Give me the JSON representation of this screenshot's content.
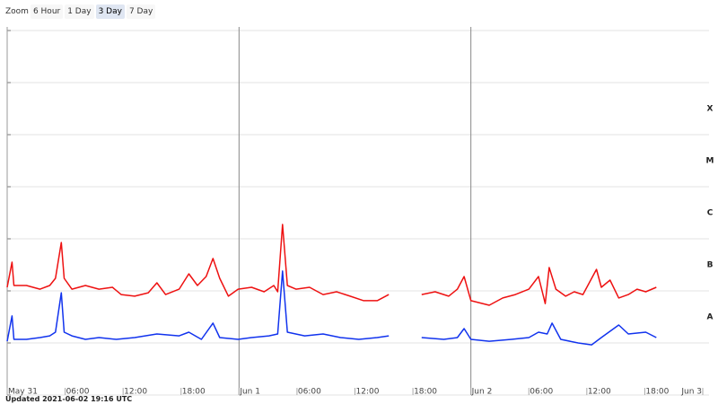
{
  "zoom": {
    "label": "Zoom",
    "options": [
      "6 Hour",
      "1 Day",
      "3 Day",
      "7 Day"
    ],
    "selected": 2
  },
  "chart_data": {
    "type": "line",
    "log_scale": true,
    "grid": true,
    "xlim": [
      0,
      72
    ],
    "xticks": [
      {
        "value": 0,
        "label": "May 31"
      },
      {
        "value": 6,
        "label": "06:00"
      },
      {
        "value": 12,
        "label": "12:00"
      },
      {
        "value": 18,
        "label": "18:00"
      },
      {
        "value": 24,
        "label": "Jun 1"
      },
      {
        "value": 30,
        "label": "06:00"
      },
      {
        "value": 36,
        "label": "12:00"
      },
      {
        "value": 42,
        "label": "18:00"
      },
      {
        "value": 48,
        "label": "Jun 2"
      },
      {
        "value": 54,
        "label": "06:00"
      },
      {
        "value": 60,
        "label": "12:00"
      },
      {
        "value": 66,
        "label": "18:00"
      },
      {
        "value": 72,
        "label": "Jun 3"
      }
    ],
    "ylim": [
      1e-09,
      0.01
    ],
    "yticks": [
      1e-09,
      1e-08,
      1e-07,
      1e-06,
      1e-05,
      0.0001,
      0.001,
      0.01
    ],
    "flare_classes": [
      "A",
      "B",
      "C",
      "M",
      "X"
    ],
    "series": [
      {
        "color": "#ee1111",
        "x": [
          0,
          0.5,
          0.7,
          2.0,
          3.4,
          4.4,
          5.0,
          5.6,
          5.9,
          6.7,
          8.1,
          9.5,
          10.9,
          11.8,
          13.2,
          14.6,
          15.5,
          16.4,
          17.8,
          18.8,
          19.7,
          20.6,
          21.3,
          22.0,
          22.9,
          23.9,
          25.3,
          26.6,
          27.6,
          28.0,
          28.5,
          29.0,
          29.9,
          31.3,
          32.7,
          34.1,
          35.5,
          36.9,
          38.3,
          39.5,
          41.0,
          42.9,
          44.3,
          45.7,
          46.6,
          47.3,
          48.0,
          49.9,
          51.3,
          52.6,
          54.0,
          55.0,
          55.7,
          56.1,
          56.8,
          57.8,
          58.7,
          59.6,
          61.0,
          61.5,
          62.4,
          63.3,
          64.3,
          65.2,
          66.1,
          67.2
        ],
        "values": [
          1.17e-07,
          3.56e-07,
          1.27e-07,
          1.27e-07,
          1.08e-07,
          1.27e-07,
          1.74e-07,
          8.5e-07,
          1.74e-07,
          1.08e-07,
          1.27e-07,
          1.08e-07,
          1.17e-07,
          8.5e-08,
          7.9e-08,
          9.2e-08,
          1.43e-07,
          8.5e-08,
          1.08e-07,
          2.13e-07,
          1.27e-07,
          1.89e-07,
          4.2e-07,
          1.74e-07,
          7.9e-08,
          1.08e-07,
          1.17e-07,
          9.6e-08,
          1.27e-07,
          9.6e-08,
          1.89e-06,
          1.27e-07,
          1.08e-07,
          1.17e-07,
          8.5e-08,
          9.6e-08,
          7.9e-08,
          6.5e-08,
          6.5e-08,
          8.5e-08,
          null,
          8.5e-08,
          9.6e-08,
          7.9e-08,
          1.08e-07,
          1.89e-07,
          6.5e-08,
          5.3e-08,
          7.3e-08,
          8.5e-08,
          1.08e-07,
          1.89e-07,
          5.7e-08,
          2.81e-07,
          1.08e-07,
          7.9e-08,
          9.6e-08,
          8.5e-08,
          2.59e-07,
          1.17e-07,
          1.61e-07,
          7.3e-08,
          8.5e-08,
          1.08e-07,
          9.6e-08,
          1.17e-07
        ]
      },
      {
        "color": "#1133ee",
        "x": [
          0,
          0.5,
          0.7,
          2.0,
          3.4,
          4.4,
          5.0,
          5.6,
          5.9,
          6.7,
          8.1,
          9.5,
          11.3,
          13.2,
          15.5,
          17.8,
          18.8,
          20.1,
          21.3,
          22.0,
          23.9,
          25.3,
          27.1,
          28.0,
          28.5,
          29.0,
          30.8,
          32.7,
          34.5,
          36.4,
          38.3,
          39.5,
          41.0,
          42.9,
          45.2,
          46.6,
          47.3,
          48.0,
          49.9,
          52.2,
          54.0,
          55.0,
          55.9,
          56.4,
          57.3,
          59.1,
          60.5,
          61.5,
          63.3,
          64.3,
          66.1,
          67.2
        ],
        "values": [
          1.08e-08,
          3.3e-08,
          1.17e-08,
          1.17e-08,
          1.27e-08,
          1.37e-08,
          1.61e-08,
          9.2e-08,
          1.61e-08,
          1.37e-08,
          1.17e-08,
          1.27e-08,
          1.17e-08,
          1.27e-08,
          1.49e-08,
          1.37e-08,
          1.61e-08,
          1.17e-08,
          2.4e-08,
          1.27e-08,
          1.17e-08,
          1.27e-08,
          1.37e-08,
          1.49e-08,
          2.4e-07,
          1.61e-08,
          1.37e-08,
          1.49e-08,
          1.27e-08,
          1.17e-08,
          1.27e-08,
          1.37e-08,
          null,
          1.27e-08,
          1.17e-08,
          1.27e-08,
          1.89e-08,
          1.17e-08,
          1.08e-08,
          1.17e-08,
          1.27e-08,
          1.61e-08,
          1.49e-08,
          2.4e-08,
          1.17e-08,
          1e-08,
          9.2e-09,
          1.27e-08,
          2.21e-08,
          1.49e-08,
          1.61e-08,
          1.27e-08
        ]
      }
    ]
  },
  "footer": "Updated 2021-06-02 19:16 UTC"
}
